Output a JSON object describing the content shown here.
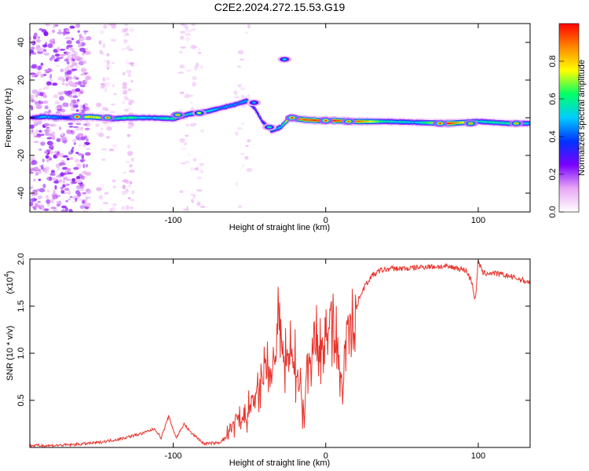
{
  "title": "C2E2.2024.272.15.53.G19",
  "chart_data": [
    {
      "type": "heatmap",
      "name": "spectrogram",
      "xlabel": "Height of straight line (km)",
      "ylabel": "Frequency (Hz)",
      "xlim": [
        -194,
        134
      ],
      "ylim": [
        -50,
        50
      ],
      "xticks": [
        -100,
        0,
        100
      ],
      "xtick_labels": [
        "-100",
        "0",
        "100"
      ],
      "yticks": [
        -40,
        -20,
        0,
        20,
        40
      ],
      "ytick_labels": [
        "-40",
        "-20",
        "0",
        "20",
        "40"
      ],
      "colorbar": {
        "label": "Normalized spectral amplitude",
        "range": [
          0,
          1
        ],
        "ticks": [
          0.0,
          0.2,
          0.4,
          0.6,
          0.8
        ],
        "tick_labels": [
          "0.0",
          "0.2",
          "0.4",
          "0.6",
          "0.8"
        ],
        "colormap": [
          "#ffffff",
          "#e9a8f5",
          "#7a00ff",
          "#0033ff",
          "#00ccff",
          "#00ff66",
          "#ffff00",
          "#ff8800",
          "#ff0000"
        ]
      },
      "ridge": [
        {
          "x": -194,
          "f": 0,
          "a": 0.3
        },
        {
          "x": -185,
          "f": 0.5,
          "a": 0.5
        },
        {
          "x": -170,
          "f": 0,
          "a": 0.35
        },
        {
          "x": -155,
          "f": 0.5,
          "a": 0.8
        },
        {
          "x": -140,
          "f": -0.5,
          "a": 0.55
        },
        {
          "x": -130,
          "f": 0,
          "a": 0.6
        },
        {
          "x": -115,
          "f": 0,
          "a": 0.5
        },
        {
          "x": -100,
          "f": -0.5,
          "a": 0.6
        },
        {
          "x": -90,
          "f": 2,
          "a": 0.5
        },
        {
          "x": -80,
          "f": 3,
          "a": 0.55
        },
        {
          "x": -70,
          "f": 5,
          "a": 0.45
        },
        {
          "x": -60,
          "f": 7,
          "a": 0.45
        },
        {
          "x": -52,
          "f": 9,
          "a": 0.45
        },
        {
          "x": -47,
          "f": 5,
          "a": 0.35
        },
        {
          "x": -42,
          "f": -2,
          "a": 0.35
        },
        {
          "x": -36,
          "f": -7,
          "a": 0.4
        },
        {
          "x": -30,
          "f": -5,
          "a": 0.5
        },
        {
          "x": -24,
          "f": 0,
          "a": 0.9
        },
        {
          "x": -15,
          "f": -1,
          "a": 0.9
        },
        {
          "x": -5,
          "f": -1.5,
          "a": 0.95
        },
        {
          "x": 5,
          "f": -1.5,
          "a": 0.95
        },
        {
          "x": 20,
          "f": -2,
          "a": 0.9
        },
        {
          "x": 40,
          "f": -2,
          "a": 0.55
        },
        {
          "x": 60,
          "f": -2.5,
          "a": 0.5
        },
        {
          "x": 80,
          "f": -3,
          "a": 0.95
        },
        {
          "x": 100,
          "f": -2,
          "a": 0.55
        },
        {
          "x": 120,
          "f": -3,
          "a": 0.6
        },
        {
          "x": 134,
          "f": -3,
          "a": 0.5
        }
      ],
      "blobs": [
        {
          "x": -163,
          "f": 0.5,
          "a": 0.95
        },
        {
          "x": -143,
          "f": 0,
          "a": 0.9
        },
        {
          "x": -97,
          "f": 1.5,
          "a": 0.85
        },
        {
          "x": -83,
          "f": 2.5,
          "a": 0.75
        },
        {
          "x": -47,
          "f": 8,
          "a": 0.5
        },
        {
          "x": -37,
          "f": -5,
          "a": 0.6
        },
        {
          "x": -22,
          "f": 0,
          "a": 0.95
        },
        {
          "x": 0,
          "f": -1.5,
          "a": 0.95
        },
        {
          "x": 15,
          "f": -2,
          "a": 0.9
        },
        {
          "x": 75,
          "f": -3,
          "a": 0.95
        },
        {
          "x": 95,
          "f": -3,
          "a": 0.85
        },
        {
          "x": 125,
          "f": -3,
          "a": 0.85
        },
        {
          "x": -27,
          "f": 31,
          "a": 0.55
        }
      ]
    },
    {
      "type": "line",
      "name": "snr",
      "xlabel": "Height of straight line (km)",
      "ylabel": "SNR (10 * v/v)",
      "y_multiplier_label": "(x10",
      "y_multiplier_exp": "4",
      "y_multiplier_close": ")",
      "xlim": [
        -194,
        134
      ],
      "ylim": [
        0,
        2.0
      ],
      "xticks": [
        -100,
        0,
        100
      ],
      "xtick_labels": [
        "-100",
        "0",
        "100"
      ],
      "yticks": [
        0.5,
        1.0,
        1.5,
        2.0
      ],
      "ytick_labels": [
        "0.5",
        "1.0",
        "1.5",
        "2.0"
      ],
      "color": "#e8322a",
      "series": [
        {
          "x": -194,
          "y": 0.02
        },
        {
          "x": -180,
          "y": 0.02
        },
        {
          "x": -165,
          "y": 0.03
        },
        {
          "x": -150,
          "y": 0.05
        },
        {
          "x": -135,
          "y": 0.09
        },
        {
          "x": -120,
          "y": 0.15
        },
        {
          "x": -112,
          "y": 0.2
        },
        {
          "x": -108,
          "y": 0.1
        },
        {
          "x": -103,
          "y": 0.33
        },
        {
          "x": -98,
          "y": 0.1
        },
        {
          "x": -93,
          "y": 0.25
        },
        {
          "x": -88,
          "y": 0.15
        },
        {
          "x": -84,
          "y": 0.1
        },
        {
          "x": -80,
          "y": 0.04
        },
        {
          "x": -70,
          "y": 0.05
        },
        {
          "x": -64,
          "y": 0.12
        },
        {
          "x": -60,
          "y": 0.3
        },
        {
          "x": -55,
          "y": 0.25
        },
        {
          "x": -50,
          "y": 0.4
        },
        {
          "x": -45,
          "y": 0.55
        },
        {
          "x": -40,
          "y": 0.8
        },
        {
          "x": -35,
          "y": 0.75
        },
        {
          "x": -31,
          "y": 1.4
        },
        {
          "x": -27,
          "y": 0.85
        },
        {
          "x": -22,
          "y": 1.0
        },
        {
          "x": -17,
          "y": 0.7
        },
        {
          "x": -14,
          "y": 0.3
        },
        {
          "x": -12,
          "y": 0.9
        },
        {
          "x": -8,
          "y": 1.15
        },
        {
          "x": -4,
          "y": 1.05
        },
        {
          "x": 0,
          "y": 1.3
        },
        {
          "x": 5,
          "y": 1.3
        },
        {
          "x": 8,
          "y": 1.05
        },
        {
          "x": 11,
          "y": 0.5
        },
        {
          "x": 14,
          "y": 1.35
        },
        {
          "x": 18,
          "y": 1.3
        },
        {
          "x": 22,
          "y": 1.6
        },
        {
          "x": 26,
          "y": 1.72
        },
        {
          "x": 30,
          "y": 1.82
        },
        {
          "x": 36,
          "y": 1.88
        },
        {
          "x": 44,
          "y": 1.9
        },
        {
          "x": 55,
          "y": 1.9
        },
        {
          "x": 65,
          "y": 1.92
        },
        {
          "x": 75,
          "y": 1.92
        },
        {
          "x": 85,
          "y": 1.91
        },
        {
          "x": 92,
          "y": 1.88
        },
        {
          "x": 96,
          "y": 1.75
        },
        {
          "x": 98,
          "y": 1.55
        },
        {
          "x": 100,
          "y": 1.98
        },
        {
          "x": 103,
          "y": 1.85
        },
        {
          "x": 110,
          "y": 1.85
        },
        {
          "x": 120,
          "y": 1.82
        },
        {
          "x": 130,
          "y": 1.77
        },
        {
          "x": 134,
          "y": 1.75
        }
      ]
    }
  ]
}
